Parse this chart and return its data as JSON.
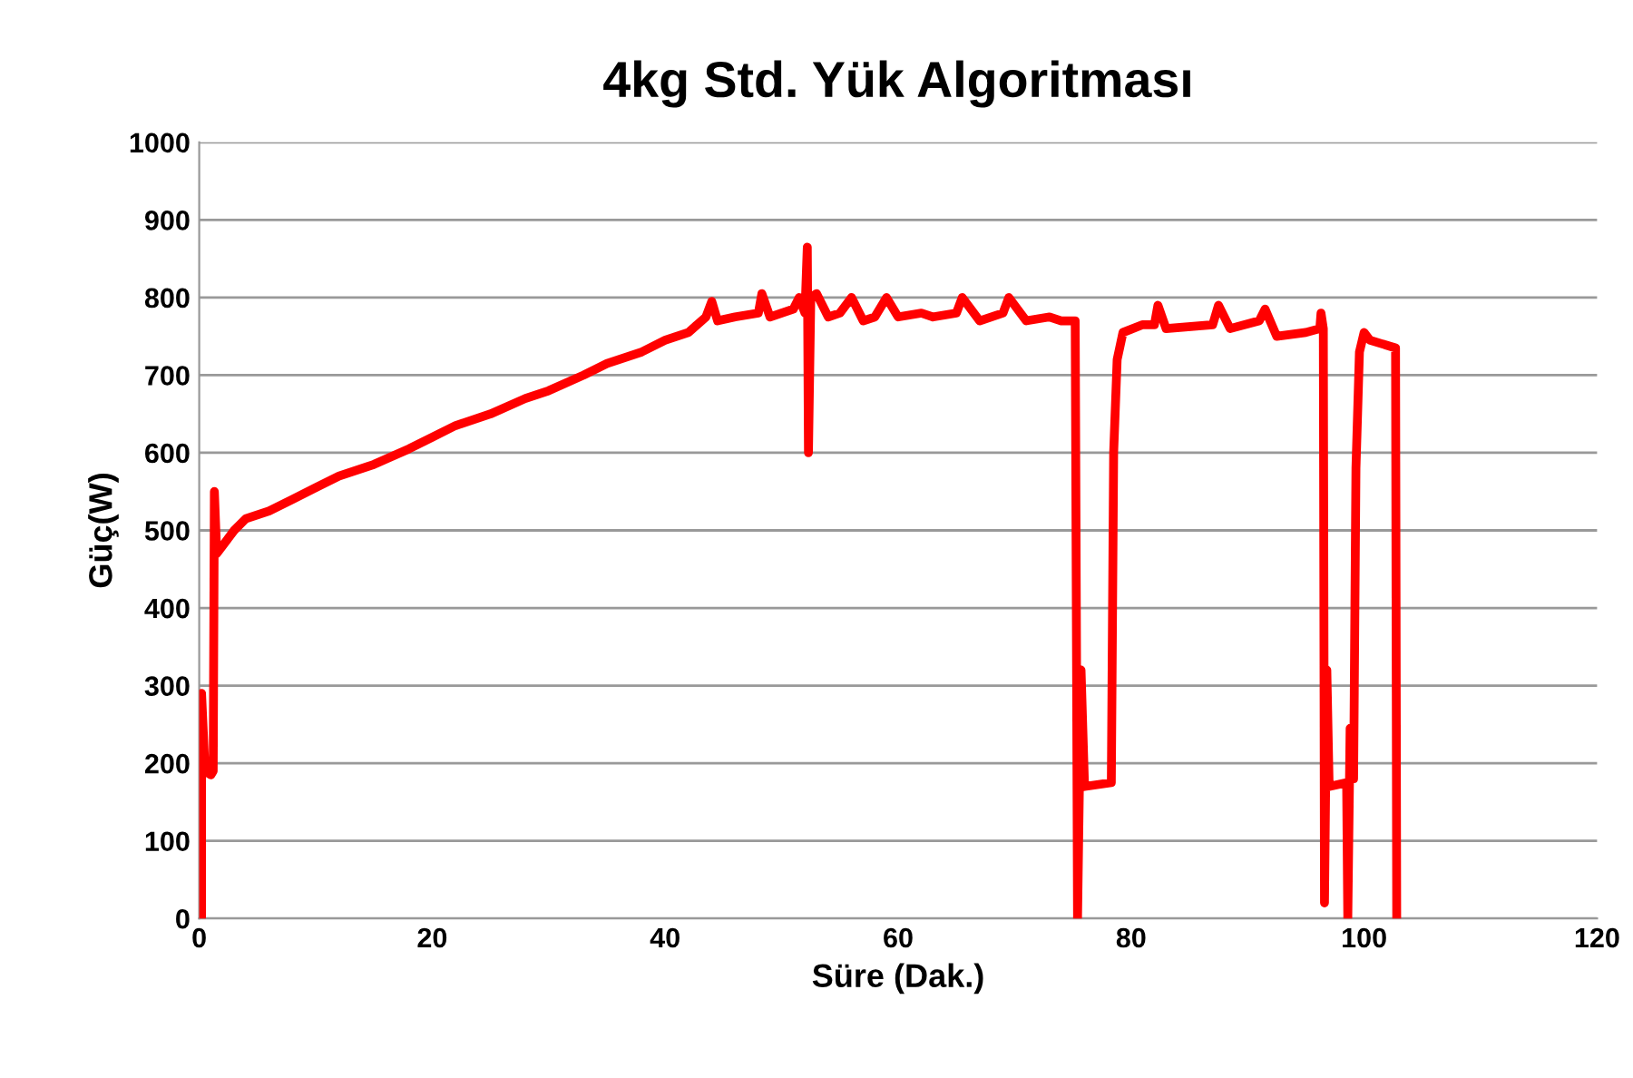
{
  "chart_data": {
    "type": "line",
    "title": "4kg Std. Yük Algoritması",
    "xlabel": "Süre (Dak.)",
    "ylabel": "Güç(W)",
    "xlim": [
      0,
      120
    ],
    "ylim": [
      0,
      1000
    ],
    "xticks": [
      0,
      20,
      40,
      60,
      80,
      100,
      120
    ],
    "yticks": [
      0,
      100,
      200,
      300,
      400,
      500,
      600,
      700,
      800,
      900,
      1000
    ],
    "grid": "y",
    "series": [
      {
        "color": "#ff0000",
        "x": [
          0.2,
          0.2,
          0.5,
          1,
          1.2,
          1.3,
          1.5,
          2,
          3,
          4,
          6,
          8,
          10,
          12,
          15,
          18,
          20,
          22,
          25,
          28,
          30,
          33,
          35,
          38,
          40,
          42,
          43.5,
          44,
          44.5,
          46,
          48,
          48.3,
          49,
          51,
          51.5,
          52,
          52.2,
          52.3,
          52.5,
          53,
          54,
          55,
          56,
          57,
          58,
          59,
          60,
          62,
          63,
          65,
          65.5,
          67,
          69,
          69.5,
          71,
          73,
          74,
          75.2,
          75.4,
          75.7,
          76,
          78.3,
          78.5,
          78.8,
          79.3,
          81,
          82,
          82.3,
          83,
          87,
          87.5,
          88.5,
          91,
          91.5,
          92.5,
          95,
          96.2,
          96.3,
          96.5,
          96.6,
          96.8,
          97,
          98.5,
          98.6,
          98.8,
          99.1,
          99.3,
          99.6,
          100,
          100.5,
          102.7,
          102.8
        ],
        "values": [
          0,
          290,
          190,
          185,
          190,
          550,
          470,
          480,
          500,
          515,
          525,
          540,
          555,
          570,
          585,
          605,
          620,
          635,
          650,
          670,
          680,
          700,
          715,
          730,
          745,
          755,
          775,
          795,
          770,
          775,
          780,
          805,
          775,
          785,
          800,
          780,
          865,
          600,
          800,
          805,
          775,
          780,
          800,
          770,
          775,
          800,
          775,
          780,
          775,
          780,
          800,
          770,
          780,
          800,
          770,
          775,
          770,
          770,
          0,
          320,
          170,
          175,
          600,
          720,
          755,
          765,
          765,
          790,
          760,
          765,
          790,
          760,
          770,
          785,
          750,
          755,
          760,
          780,
          760,
          20,
          320,
          170,
          175,
          0,
          245,
          180,
          580,
          730,
          755,
          745,
          735,
          0
        ]
      }
    ]
  }
}
